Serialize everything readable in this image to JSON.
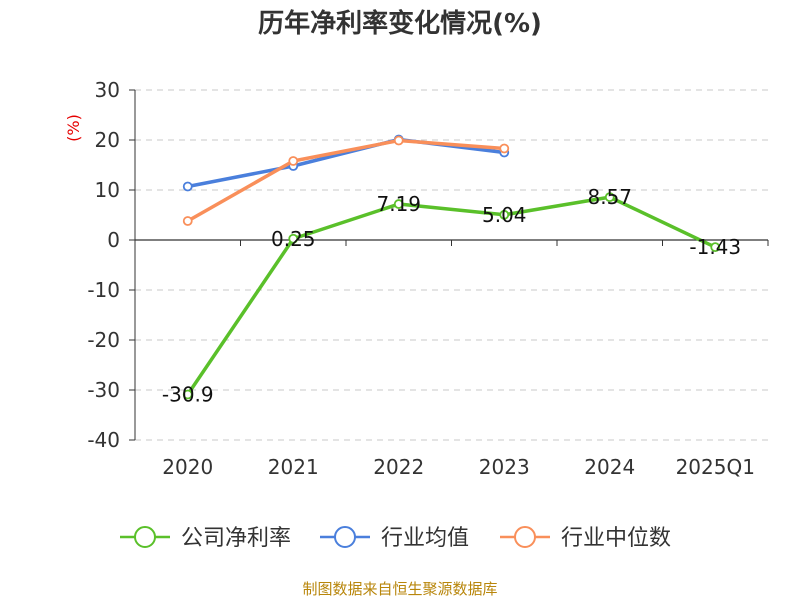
{
  "chart_data": {
    "type": "line",
    "title": "历年净利率变化情况(%)",
    "ylabel": "(%)",
    "categories": [
      "2020",
      "2021",
      "2022",
      "2023",
      "2024",
      "2025Q1"
    ],
    "ylim": [
      -40,
      30
    ],
    "yticks": [
      30,
      20,
      10,
      0,
      -10,
      -20,
      -30,
      -40
    ],
    "grid": true,
    "legend_placement": "bottom",
    "series": [
      {
        "name": "公司净利率",
        "color": "#5ac02a",
        "values": [
          -30.9,
          0.25,
          7.19,
          5.04,
          8.57,
          -1.43
        ],
        "labels": [
          "-30.9",
          "0.25",
          "7.19",
          "5.04",
          "8.57",
          "-1.43"
        ]
      },
      {
        "name": "行业均值",
        "color": "#4a7fdc",
        "values": [
          10.7,
          14.8,
          20.1,
          17.5,
          null,
          null
        ]
      },
      {
        "name": "行业中位数",
        "color": "#f98f5a",
        "values": [
          3.8,
          15.8,
          19.9,
          18.3,
          null,
          null
        ]
      }
    ]
  },
  "source_text": "制图数据来自恒生聚源数据库"
}
